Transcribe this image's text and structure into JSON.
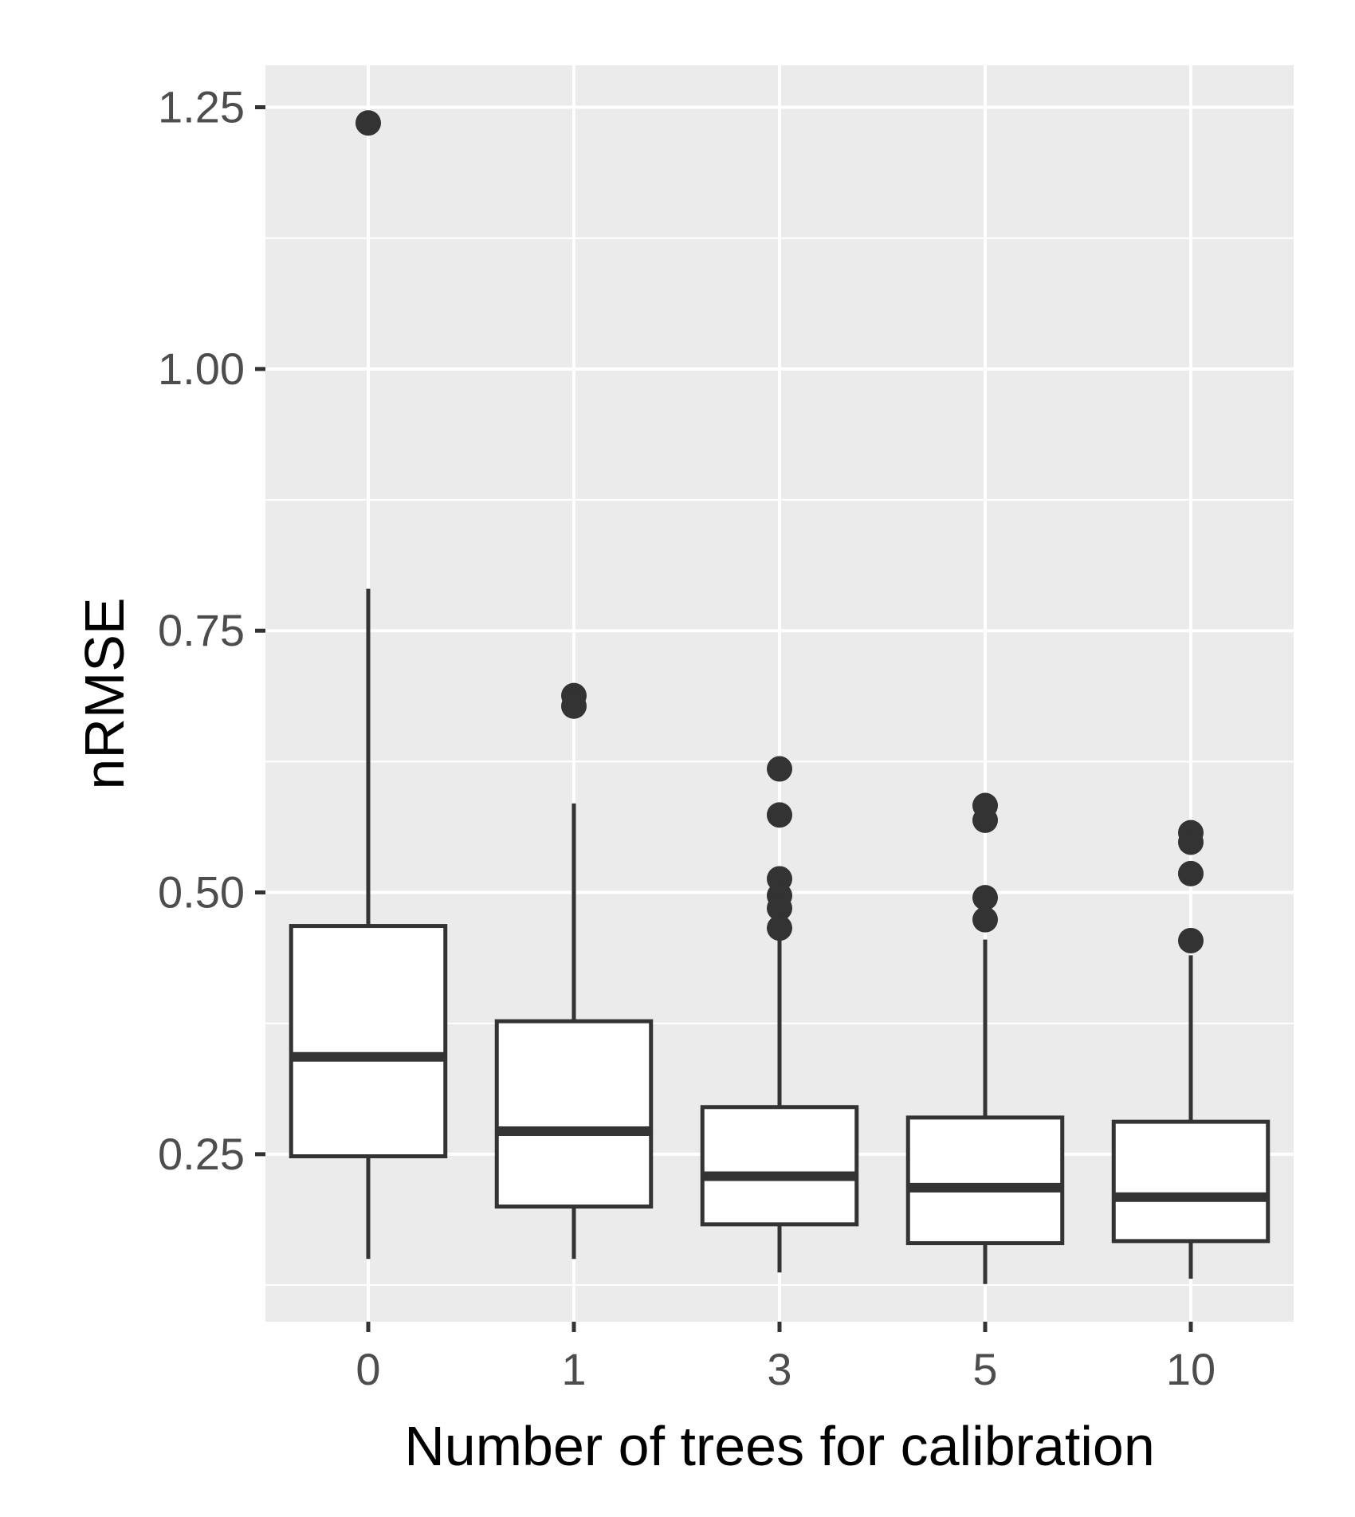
{
  "chart_data": {
    "type": "boxplot",
    "title": "",
    "xlabel": "Number of trees for calibration",
    "ylabel": "nRMSE",
    "categories": [
      "0",
      "1",
      "3",
      "5",
      "10"
    ],
    "ylim": [
      0.09,
      1.29
    ],
    "yticks": [
      {
        "value": 0.25,
        "label": "0.25"
      },
      {
        "value": 0.5,
        "label": "0.50"
      },
      {
        "value": 0.75,
        "label": "0.75"
      },
      {
        "value": 1.0,
        "label": "1.00"
      },
      {
        "value": 1.25,
        "label": "1.25"
      }
    ],
    "boxes": [
      {
        "category": "0",
        "whisker_low": 0.15,
        "q1": 0.248,
        "median": 0.343,
        "q3": 0.468,
        "whisker_high": 0.79,
        "outliers": [
          1.235
        ]
      },
      {
        "category": "1",
        "whisker_low": 0.15,
        "q1": 0.2,
        "median": 0.272,
        "q3": 0.377,
        "whisker_high": 0.585,
        "outliers": [
          0.688,
          0.678
        ]
      },
      {
        "category": "3",
        "whisker_low": 0.137,
        "q1": 0.183,
        "median": 0.229,
        "q3": 0.295,
        "whisker_high": 0.46,
        "outliers": [
          0.618,
          0.574,
          0.513,
          0.497,
          0.485,
          0.466
        ]
      },
      {
        "category": "5",
        "whisker_low": 0.126,
        "q1": 0.165,
        "median": 0.218,
        "q3": 0.285,
        "whisker_high": 0.455,
        "outliers": [
          0.583,
          0.569,
          0.495,
          0.474
        ]
      },
      {
        "category": "10",
        "whisker_low": 0.131,
        "q1": 0.167,
        "median": 0.209,
        "q3": 0.281,
        "whisker_high": 0.44,
        "outliers": [
          0.557,
          0.548,
          0.518,
          0.454
        ]
      }
    ],
    "colors": {
      "panel_background": "#EBEBEB",
      "grid": "#FFFFFF",
      "box_fill": "#FFFFFF",
      "box_stroke": "#333333",
      "tick_text": "#4D4D4D",
      "label_text": "#000000"
    }
  }
}
